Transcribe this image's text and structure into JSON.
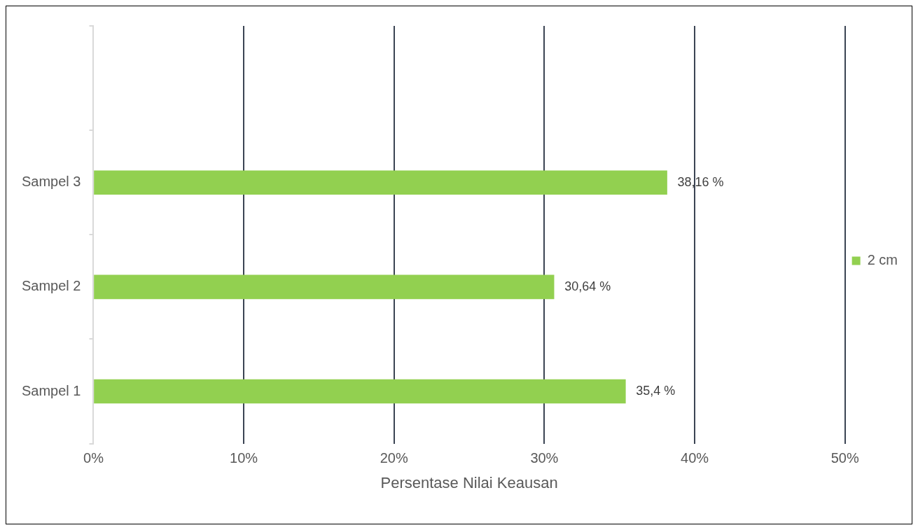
{
  "chart_data": {
    "type": "bar",
    "orientation": "horizontal",
    "xlabel": "Persentase Nilai Keausan",
    "categories": [
      null,
      "Sampel 3",
      "Sampel 2",
      "Sampel 1"
    ],
    "series": [
      {
        "name": "2 cm",
        "color": "#92d050",
        "values": [
          null,
          38.16,
          30.64,
          35.4
        ],
        "value_labels": [
          null,
          "38,16 %",
          "30,64 %",
          "35,4 %"
        ]
      }
    ],
    "xlim": [
      0,
      50
    ],
    "xticks": [
      {
        "value": 0,
        "label": "0%"
      },
      {
        "value": 10,
        "label": "10%"
      },
      {
        "value": 20,
        "label": "20%"
      },
      {
        "value": 30,
        "label": "30%"
      },
      {
        "value": 40,
        "label": "40%"
      },
      {
        "value": 50,
        "label": "50%"
      }
    ],
    "grid": "x",
    "legend": "right"
  }
}
